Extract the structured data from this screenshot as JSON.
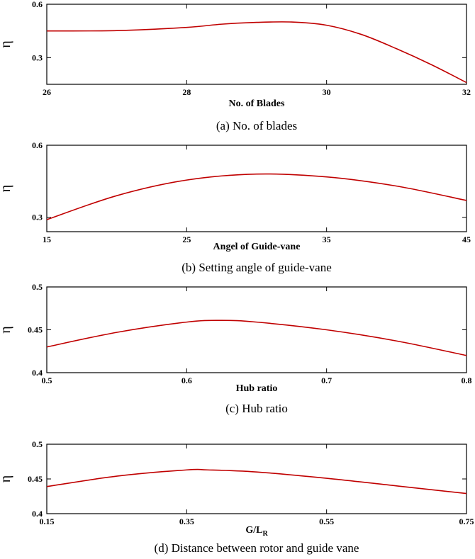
{
  "chart_data": [
    {
      "type": "line",
      "caption": "(a)  No.  of  blades",
      "xlabel": "No. of Blades",
      "ylabel": "η",
      "xlim": [
        26,
        32
      ],
      "ylim": [
        0.15,
        0.6
      ],
      "xticks": [
        26,
        28,
        30,
        32
      ],
      "yticks": [
        0.3,
        0.6
      ],
      "grid": false,
      "series": [
        {
          "color": "#c00000",
          "x": [
            26,
            27,
            28,
            28.5,
            29,
            29.5,
            30,
            30.5,
            31,
            31.5,
            32
          ],
          "y": [
            0.45,
            0.452,
            0.47,
            0.488,
            0.498,
            0.5,
            0.482,
            0.43,
            0.35,
            0.26,
            0.16
          ]
        }
      ]
    },
    {
      "type": "line",
      "caption": "(b)  Setting  angle  of  guide-vane",
      "xlabel": "Angel of Guide-vane",
      "ylabel": "η",
      "xlim": [
        15,
        45
      ],
      "ylim": [
        0.24,
        0.6
      ],
      "xticks": [
        15,
        25,
        35,
        45
      ],
      "yticks": [
        0.3,
        0.6
      ],
      "grid": false,
      "series": [
        {
          "color": "#c00000",
          "x": [
            15,
            20,
            25,
            30,
            35,
            40,
            45
          ],
          "y": [
            0.29,
            0.39,
            0.455,
            0.48,
            0.468,
            0.43,
            0.37
          ]
        }
      ]
    },
    {
      "type": "line",
      "caption": "(c)  Hub  ratio",
      "xlabel": "Hub ratio",
      "ylabel": "η",
      "xlim": [
        0.5,
        0.8
      ],
      "ylim": [
        0.4,
        0.5
      ],
      "xticks": [
        "0.5",
        "0.6",
        "0.7",
        "0.8"
      ],
      "yticks": [
        "0.4",
        "0.45",
        "0.5"
      ],
      "grid": false,
      "series": [
        {
          "color": "#c00000",
          "x": [
            0.5,
            0.55,
            0.6,
            0.625,
            0.65,
            0.7,
            0.75,
            0.8
          ],
          "y": [
            0.43,
            0.447,
            0.459,
            0.461,
            0.459,
            0.45,
            0.437,
            0.42
          ]
        }
      ]
    },
    {
      "type": "line",
      "caption": "(d)  Distance  between  rotor  and  guide  vane",
      "xlabel": "G/L",
      "xlabel_sub": "R",
      "ylabel": "η",
      "xlim": [
        0.15,
        0.75
      ],
      "ylim": [
        0.4,
        0.5
      ],
      "xticks": [
        "0.15",
        "0.35",
        "0.55",
        "0.75"
      ],
      "yticks": [
        "0.4",
        "0.45",
        "0.5"
      ],
      "grid": false,
      "series": [
        {
          "color": "#c00000",
          "x": [
            0.15,
            0.25,
            0.35,
            0.38,
            0.45,
            0.55,
            0.65,
            0.75
          ],
          "y": [
            0.439,
            0.454,
            0.463,
            0.463,
            0.46,
            0.451,
            0.44,
            0.429
          ]
        }
      ]
    }
  ]
}
